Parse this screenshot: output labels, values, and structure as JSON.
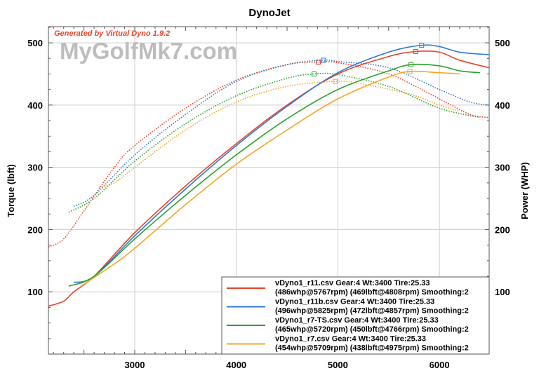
{
  "chart_data": {
    "type": "line",
    "title": "DynoJet",
    "annotation": "Generated by Virtual Dyno 1.9.2",
    "watermark": "MyGolfMk7.com",
    "xlabel": "",
    "ylabel_left": "Torque (lbft)",
    "ylabel_right": "Power (WHP)",
    "xlim": [
      2150,
      6490
    ],
    "ylim": [
      0,
      526
    ],
    "xticks": [
      3000,
      4000,
      5000,
      6000
    ],
    "yticks": [
      100,
      200,
      300,
      400,
      500
    ],
    "grid": true,
    "legend_position": "bottom-right",
    "series": [
      {
        "name": "vDyno1_r11.csv Gear:4 Wt:3400 Tire:25.33",
        "detail": "(486whp@5767rpm) (469lbft@4808rpm) Smoothing:2",
        "color": "#e8432a",
        "power": {
          "x": [
            2150,
            2300,
            2400,
            2600,
            3000,
            3500,
            4000,
            4500,
            5000,
            5500,
            5767,
            6000,
            6200,
            6490
          ],
          "y": [
            77,
            85,
            100,
            125,
            195,
            270,
            338,
            400,
            450,
            478,
            486,
            485,
            472,
            460
          ]
        },
        "torque": {
          "x": [
            2150,
            2300,
            2500,
            2800,
            3000,
            3500,
            4000,
            4500,
            4808,
            5000,
            5500,
            6000,
            6300,
            6490
          ],
          "y": [
            172,
            185,
            230,
            300,
            335,
            395,
            440,
            465,
            469,
            468,
            450,
            410,
            385,
            380
          ]
        },
        "peak_power": [
          5767,
          486
        ],
        "peak_torque": [
          4808,
          469
        ]
      },
      {
        "name": "vDyno1_r11b.csv Gear:4 Wt:3400 Tire:25.33",
        "detail": "(496whp@5825rpm) (472lbft@4857rpm) Smoothing:2",
        "color": "#2f78d2",
        "power": {
          "x": [
            2400,
            2600,
            3000,
            3500,
            4000,
            4500,
            5000,
            5500,
            5825,
            6000,
            6200,
            6490
          ],
          "y": [
            115,
            125,
            190,
            265,
            335,
            398,
            452,
            485,
            496,
            494,
            485,
            481
          ]
        },
        "torque": {
          "x": [
            2400,
            2600,
            3000,
            3500,
            4000,
            4500,
            4857,
            5000,
            5500,
            6000,
            6300,
            6490
          ],
          "y": [
            237,
            255,
            320,
            385,
            438,
            465,
            472,
            470,
            460,
            425,
            405,
            400
          ]
        },
        "peak_power": [
          5825,
          496
        ],
        "peak_torque": [
          4857,
          472
        ]
      },
      {
        "name": "vDyno1_r7-TS.csv Gear:4 Wt:3400 Tire:25.33",
        "detail": "(465whp@5720rpm) (450lbft@4766rpm) Smoothing:2",
        "color": "#2ca02c",
        "power": {
          "x": [
            2350,
            2600,
            3000,
            3500,
            4000,
            4500,
            5000,
            5500,
            5720,
            6000,
            6200,
            6400
          ],
          "y": [
            109,
            125,
            185,
            255,
            320,
            378,
            425,
            455,
            465,
            463,
            455,
            452
          ]
        },
        "torque": {
          "x": [
            2350,
            2600,
            3000,
            3500,
            4000,
            4500,
            4766,
            5000,
            5500,
            6000,
            6400
          ],
          "y": [
            228,
            250,
            310,
            370,
            415,
            443,
            450,
            449,
            430,
            395,
            380
          ]
        },
        "peak_power": [
          5720,
          465
        ],
        "peak_torque": [
          4766,
          450
        ]
      },
      {
        "name": "vDyno1_r7.csv Gear:4 Wt:3400 Tire:25.33",
        "detail": "(454whp@5709rpm) (438lbft@4975rpm) Smoothing:2",
        "color": "#f5a623",
        "power": {
          "x": [
            2470,
            2800,
            3000,
            3500,
            4000,
            4500,
            5000,
            5500,
            5709,
            6000,
            6200
          ],
          "y": [
            109,
            145,
            170,
            240,
            305,
            360,
            410,
            445,
            454,
            452,
            450
          ]
        },
        "torque": {
          "x": [
            2650,
            2800,
            3000,
            3500,
            4000,
            4500,
            4975,
            5200,
            5700,
            6000,
            6200
          ],
          "y": [
            268,
            275,
            300,
            360,
            405,
            430,
            438,
            435,
            418,
            400,
            390
          ]
        },
        "peak_power": [
          5709,
          454
        ],
        "peak_torque": [
          4975,
          438
        ]
      }
    ]
  }
}
